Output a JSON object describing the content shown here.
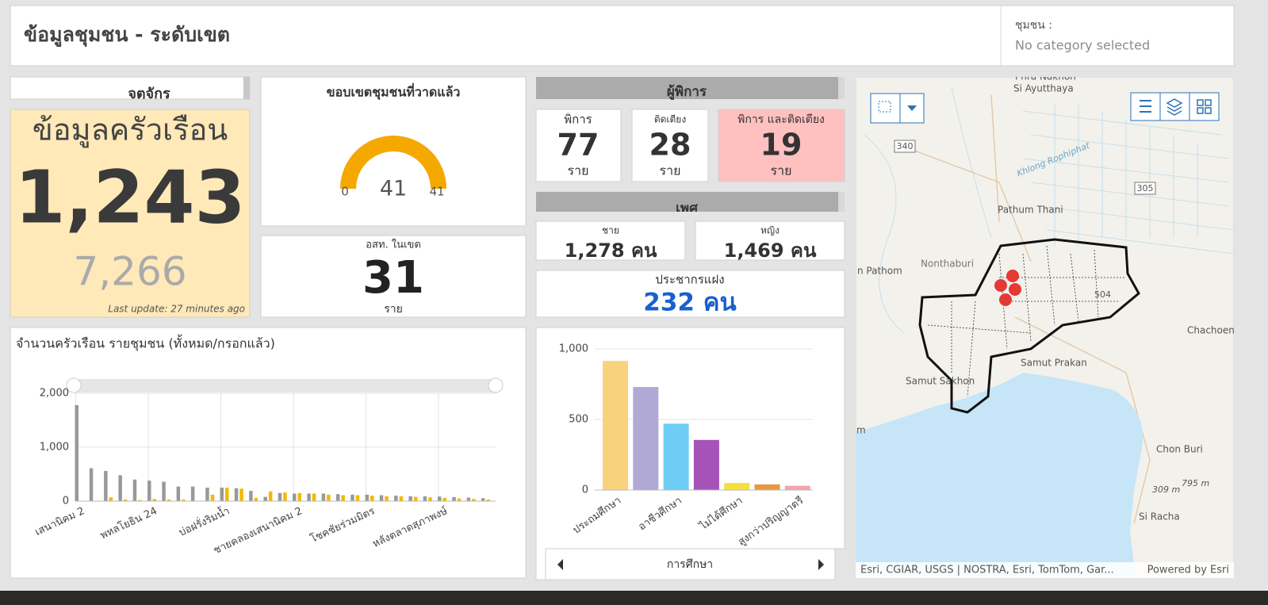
{
  "header": {
    "title": "ข้อมูลชุมชน - ระดับเขต",
    "filter_label": "ชุมชน :",
    "filter_value": "No category selected"
  },
  "district": "จตุจักร",
  "households": {
    "title": "ข้อมูลครัวเรือน",
    "total": "1,243",
    "secondary": "7,266",
    "updated": "Last update: 27 minutes ago"
  },
  "gauge": {
    "title": "ขอบเขตชุมชนที่วาดแล้ว",
    "min": 0,
    "max": 41,
    "value": 41,
    "color": "#f5a800"
  },
  "volunteers": {
    "label": "อสท. ในเขต",
    "value": "31",
    "unit": "ราย"
  },
  "disabled": {
    "title": "ผู้พิการ",
    "cards": [
      {
        "label": "พิการ",
        "value": "77",
        "unit": "ราย"
      },
      {
        "label": "ติดเตียง",
        "value": "28",
        "unit": "ราย"
      },
      {
        "label": "พิการ และติดเตียง",
        "value": "19",
        "unit": "ราย"
      }
    ]
  },
  "gender": {
    "title": "เพศ",
    "cards": [
      {
        "label": "ชาย",
        "value": "1,278 คน"
      },
      {
        "label": "หญิง",
        "value": "1,469 คน"
      }
    ]
  },
  "hidden_population": {
    "label": "ประชากรแฝง",
    "value": "232 คน"
  },
  "chart_data": [
    {
      "type": "bar",
      "title": "จำนวนครัวเรือน รายชุมชน (ทั้งหมด/กรอกแล้ว)",
      "categories": [
        "เสนานิคม 2",
        null,
        null,
        null,
        null,
        "พหลโยธิน 24",
        null,
        null,
        null,
        null,
        "บ่อฝรั่งริมน้ำ",
        null,
        null,
        null,
        null,
        "ชายคลองเสนานิคม 2",
        null,
        null,
        null,
        null,
        "โชคชัยร่วมมิตร",
        null,
        null,
        null,
        null,
        "หลังตลาดสุภาพงษ์",
        null,
        null,
        null
      ],
      "series": [
        {
          "color": "#999999",
          "values": [
            1780,
            610,
            560,
            480,
            400,
            380,
            360,
            270,
            270,
            250,
            250,
            240,
            190,
            80,
            150,
            140,
            140,
            140,
            130,
            120,
            120,
            110,
            100,
            90,
            90,
            85,
            75,
            65,
            55
          ]
        },
        {
          "color": "#f5b800",
          "values": [
            0,
            5,
            70,
            30,
            20,
            40,
            30,
            30,
            0,
            120,
            250,
            230,
            60,
            180,
            160,
            150,
            140,
            120,
            110,
            110,
            100,
            90,
            90,
            80,
            70,
            60,
            50,
            40,
            30
          ]
        }
      ],
      "ylim": [
        0,
        2000
      ],
      "yticks": [
        0,
        {
          "value": 1000,
          "label": "1,000"
        },
        {
          "value": 2000,
          "label": "2,000"
        }
      ],
      "grid": true
    },
    {
      "type": "bar",
      "x_label": "การศึกษา",
      "categories": [
        "ประถมศึกษา",
        null,
        "อาชีวศึกษา",
        null,
        "ไม่ได้ศึกษา",
        null,
        "สูงกว่าปริญญาตรี"
      ],
      "values": [
        915,
        730,
        470,
        355,
        50,
        40,
        30
      ],
      "colors": [
        "#f9d27d",
        "#b1a9d5",
        "#6dcdf5",
        "#a653b9",
        "#f6df3a",
        "#e8973f",
        "#f4a3ab"
      ],
      "ylim": [
        0,
        1000
      ],
      "yticks": [
        0,
        500,
        {
          "value": 1000,
          "label": "1,000"
        }
      ],
      "grid": true
    }
  ],
  "map": {
    "labels": [
      "Phra Nakhon",
      "Si Ayutthaya",
      "340",
      "305",
      "Khlong Rophiphat",
      "Pathum Thani",
      "Nonthaburi",
      "n Pathom",
      "Chachoen",
      "Samut Prakan",
      "Samut Sakhon",
      "m",
      "Chon Buri",
      "309 m",
      "795 m",
      "Si Racha",
      "504"
    ],
    "attribution": "Esri, CGIAR, USGS | NOSTRA, Esri, TomTom, Gar...",
    "powered_by": "Powered by Esri"
  }
}
